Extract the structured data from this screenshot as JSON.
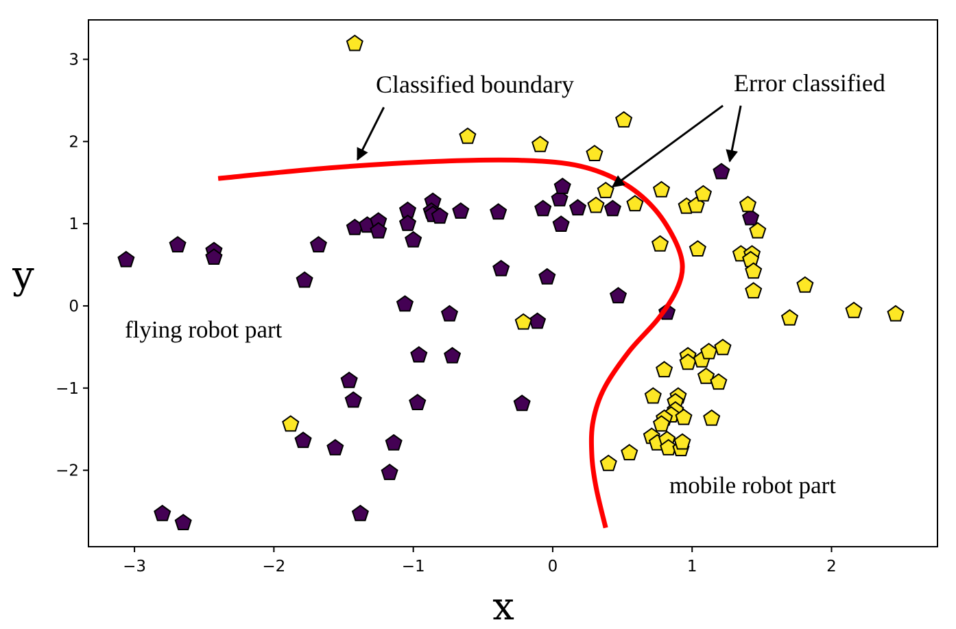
{
  "chart_data": {
    "type": "scatter",
    "xlabel": "x",
    "ylabel": "y",
    "xlim": [
      -3.33,
      2.76
    ],
    "ylim": [
      -2.93,
      3.48
    ],
    "xticks": [
      -3,
      -2,
      -1,
      0,
      1,
      2
    ],
    "yticks": [
      -2,
      -1,
      0,
      1,
      2,
      3
    ],
    "xtick_labels": [
      "−3",
      "−2",
      "−1",
      "0",
      "1",
      "2"
    ],
    "ytick_labels": [
      "−2",
      "−1",
      "0",
      "1",
      "2",
      "3"
    ],
    "grid": false,
    "colors": {
      "purple": "#440154",
      "yellow": "#fde725",
      "boundary": "#ff0000"
    },
    "series": [
      {
        "color": "#440154",
        "points": [
          [
            -3.06,
            0.56
          ],
          [
            -2.69,
            0.74
          ],
          [
            -2.43,
            0.67
          ],
          [
            -2.43,
            0.59
          ],
          [
            -1.78,
            0.31
          ],
          [
            -1.68,
            0.74
          ],
          [
            -1.42,
            0.95
          ],
          [
            -1.33,
            0.98
          ],
          [
            -1.25,
            1.03
          ],
          [
            -1.25,
            0.91
          ],
          [
            -1.04,
            1.16
          ],
          [
            -1.04,
            1.0
          ],
          [
            -1.0,
            0.8
          ],
          [
            -0.86,
            1.27
          ],
          [
            -0.87,
            1.15
          ],
          [
            -0.86,
            1.11
          ],
          [
            -0.81,
            1.09
          ],
          [
            -0.66,
            1.15
          ],
          [
            -0.39,
            1.14
          ],
          [
            -0.37,
            0.45
          ],
          [
            -0.07,
            1.18
          ],
          [
            -0.04,
            0.35
          ],
          [
            0.05,
            1.3
          ],
          [
            0.07,
            1.45
          ],
          [
            0.06,
            0.99
          ],
          [
            0.18,
            1.19
          ],
          [
            0.43,
            1.18
          ],
          [
            0.47,
            0.12
          ],
          [
            -1.06,
            0.02
          ],
          [
            -0.74,
            -0.1
          ],
          [
            -0.72,
            -0.61
          ],
          [
            -0.96,
            -0.6
          ],
          [
            -0.11,
            -0.19
          ],
          [
            0.82,
            -0.08
          ],
          [
            -1.46,
            -0.91
          ],
          [
            -1.43,
            -1.15
          ],
          [
            -0.97,
            -1.18
          ],
          [
            -0.22,
            -1.19
          ],
          [
            -1.79,
            -1.64
          ],
          [
            -1.56,
            -1.73
          ],
          [
            -1.14,
            -1.67
          ],
          [
            -1.17,
            -2.03
          ],
          [
            -1.38,
            -2.53
          ],
          [
            -2.8,
            -2.53
          ],
          [
            -2.65,
            -2.64
          ],
          [
            1.21,
            1.63
          ],
          [
            1.42,
            1.07
          ]
        ]
      },
      {
        "color": "#fde725",
        "points": [
          [
            -1.42,
            3.19
          ],
          [
            -0.61,
            2.06
          ],
          [
            -0.09,
            1.96
          ],
          [
            0.3,
            1.85
          ],
          [
            0.51,
            2.26
          ],
          [
            0.38,
            1.4
          ],
          [
            0.31,
            1.22
          ],
          [
            0.59,
            1.24
          ],
          [
            0.78,
            1.41
          ],
          [
            0.96,
            1.21
          ],
          [
            1.03,
            1.22
          ],
          [
            1.08,
            1.36
          ],
          [
            1.4,
            1.23
          ],
          [
            1.47,
            0.91
          ],
          [
            0.77,
            0.75
          ],
          [
            1.04,
            0.69
          ],
          [
            1.35,
            0.63
          ],
          [
            1.43,
            0.63
          ],
          [
            1.42,
            0.56
          ],
          [
            1.44,
            0.42
          ],
          [
            1.81,
            0.25
          ],
          [
            1.44,
            0.18
          ],
          [
            1.7,
            -0.15
          ],
          [
            2.16,
            -0.06
          ],
          [
            2.46,
            -0.1
          ],
          [
            -0.21,
            -0.2
          ],
          [
            0.97,
            -0.61
          ],
          [
            0.97,
            -0.69
          ],
          [
            1.07,
            -0.66
          ],
          [
            1.12,
            -0.56
          ],
          [
            1.22,
            -0.51
          ],
          [
            0.8,
            -0.78
          ],
          [
            1.1,
            -0.86
          ],
          [
            1.19,
            -0.93
          ],
          [
            0.72,
            -1.1
          ],
          [
            0.9,
            -1.1
          ],
          [
            0.88,
            -1.17
          ],
          [
            0.88,
            -1.27
          ],
          [
            0.85,
            -1.33
          ],
          [
            0.8,
            -1.37
          ],
          [
            0.78,
            -1.44
          ],
          [
            0.94,
            -1.36
          ],
          [
            1.14,
            -1.37
          ],
          [
            0.71,
            -1.59
          ],
          [
            0.75,
            -1.67
          ],
          [
            0.82,
            -1.63
          ],
          [
            0.83,
            -1.73
          ],
          [
            0.92,
            -1.74
          ],
          [
            0.93,
            -1.66
          ],
          [
            0.55,
            -1.79
          ],
          [
            -1.88,
            -1.44
          ],
          [
            0.4,
            -1.92
          ]
        ]
      }
    ],
    "boundary_curve": [
      [
        -2.4,
        1.55
      ],
      [
        -1.6,
        1.68
      ],
      [
        -0.8,
        1.76
      ],
      [
        -0.2,
        1.77
      ],
      [
        0.2,
        1.7
      ],
      [
        0.5,
        1.5
      ],
      [
        0.72,
        1.2
      ],
      [
        0.87,
        0.82
      ],
      [
        0.93,
        0.5
      ],
      [
        0.89,
        0.2
      ],
      [
        0.76,
        -0.15
      ],
      [
        0.55,
        -0.55
      ],
      [
        0.37,
        -1.0
      ],
      [
        0.29,
        -1.4
      ],
      [
        0.28,
        -1.8
      ],
      [
        0.31,
        -2.2
      ],
      [
        0.38,
        -2.7
      ]
    ],
    "annotations": [
      {
        "text": "Classified boundary",
        "xy": [
          -1.4,
          1.78
        ],
        "xytext": [
          -1.3,
          2.6
        ]
      },
      {
        "text": "Error classified",
        "xy_list": [
          [
            0.43,
            1.45
          ],
          [
            1.27,
            1.76
          ]
        ],
        "xytext": [
          1.27,
          2.62
        ]
      },
      {
        "text": "flying robot part",
        "xy": [
          -3.07,
          -0.3
        ]
      },
      {
        "text": "mobile robot part",
        "xy": [
          0.82,
          -2.2
        ]
      }
    ]
  }
}
